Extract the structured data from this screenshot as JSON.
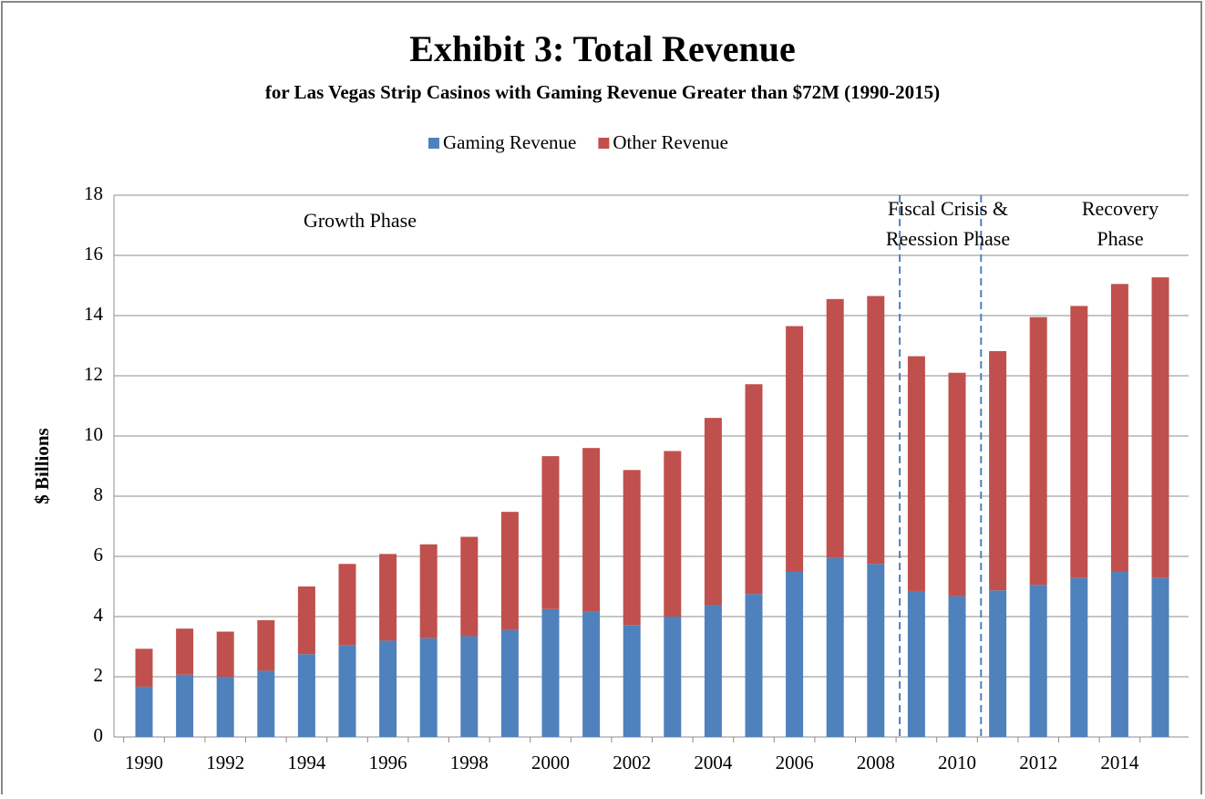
{
  "chart_data": {
    "type": "stacked_bar",
    "title": "Exhibit 3: Total Revenue",
    "subtitle": "for Las Vegas Strip Casinos with Gaming Revenue Greater than $72M (1990-2015)",
    "y_label": "$ Billions",
    "categories": [
      "1990",
      null,
      "1992",
      null,
      "1994",
      null,
      "1996",
      null,
      "1998",
      null,
      "2000",
      null,
      "2002",
      null,
      "2004",
      null,
      "2006",
      null,
      "2008",
      null,
      "2010",
      null,
      "2012",
      null,
      "2014",
      null
    ],
    "series": [
      {
        "name": "Gaming Revenue",
        "color": "#4f81bd",
        "values": [
          1.67,
          2.07,
          2.0,
          2.2,
          2.75,
          3.05,
          3.2,
          3.28,
          3.35,
          3.55,
          4.25,
          4.18,
          3.72,
          4.0,
          4.38,
          4.75,
          5.5,
          5.95,
          5.75,
          4.85,
          4.68,
          4.87,
          5.05,
          5.28,
          5.5,
          5.28
        ]
      },
      {
        "name": "Other Revenue",
        "color": "#c0504d",
        "values": [
          1.26,
          1.53,
          1.5,
          1.68,
          2.25,
          2.7,
          2.88,
          3.12,
          3.3,
          3.93,
          5.08,
          5.42,
          5.15,
          5.5,
          6.22,
          6.97,
          8.15,
          8.6,
          8.9,
          7.8,
          7.42,
          7.95,
          8.9,
          9.04,
          9.55,
          9.99
        ]
      }
    ],
    "ylim": [
      0,
      18
    ],
    "yticks": [
      0,
      2,
      4,
      6,
      8,
      10,
      12,
      14,
      16,
      18
    ],
    "grid": true,
    "legend": "top",
    "annotations": [
      {
        "lines": [
          "Growth Phase"
        ]
      },
      {
        "lines": [
          "Fiscal Crisis &",
          "Reession Phase"
        ]
      },
      {
        "lines": [
          "Recovery",
          "Phase"
        ]
      }
    ]
  }
}
